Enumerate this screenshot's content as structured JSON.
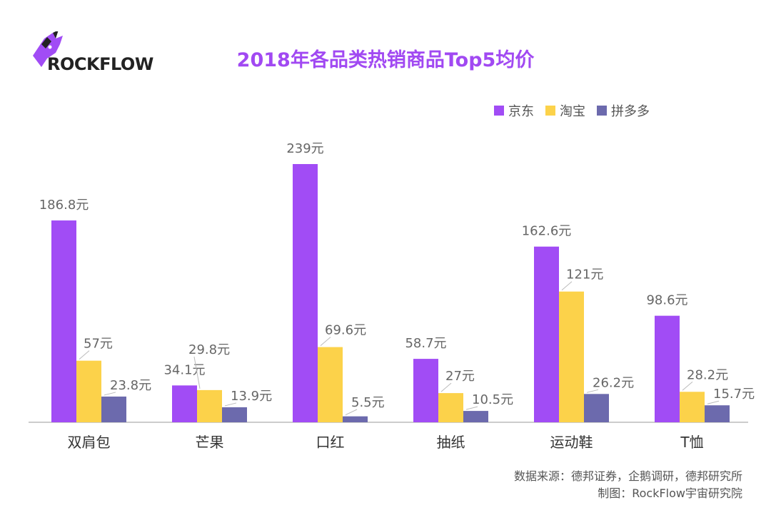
{
  "logo": {
    "text": "ROCKFLOW"
  },
  "title": "2018年各品类热销商品Top5均价",
  "colors": {
    "jd": "#a14cf5",
    "taobao": "#fcd24a",
    "pdd": "#6c6aad",
    "axis": "#999999",
    "label": "#666666"
  },
  "chart_data": {
    "type": "bar",
    "categories": [
      "双肩包",
      "芒果",
      "口红",
      "抽纸",
      "运动鞋",
      "T恤"
    ],
    "series": [
      {
        "name": "京东",
        "values": [
          186.8,
          34.1,
          239,
          58.7,
          162.6,
          98.6
        ],
        "labels": [
          "186.8元",
          "34.1元",
          "239元",
          "58.7元",
          "162.6元",
          "98.6元"
        ]
      },
      {
        "name": "淘宝",
        "values": [
          57,
          29.8,
          69.6,
          27,
          121,
          28.2
        ],
        "labels": [
          "57元",
          "29.8元",
          "69.6元",
          "27元",
          "121元",
          "28.2元"
        ]
      },
      {
        "name": "拼多多",
        "values": [
          23.8,
          13.9,
          5.5,
          10.5,
          26.2,
          15.7
        ],
        "labels": [
          "23.8元",
          "13.9元",
          "5.5元",
          "10.5元",
          "26.2元",
          "15.7元"
        ]
      }
    ],
    "ylim": [
      0,
      240
    ],
    "legend": "top-right"
  },
  "source": {
    "line1": "数据来源：德邦证券，企鹅调研，德邦研究所",
    "line2": "制图：RockFlow宇宙研究院"
  }
}
